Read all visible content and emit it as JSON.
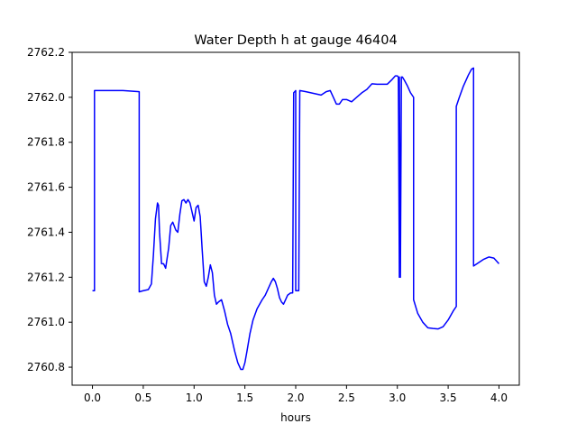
{
  "chart_data": {
    "type": "line",
    "title": "Water Depth h at gauge 46404",
    "xlabel": "hours",
    "ylabel": "",
    "xlim": [
      -0.2,
      4.2
    ],
    "ylim": [
      2760.72,
      2762.2
    ],
    "xticks": [
      0.0,
      0.5,
      1.0,
      1.5,
      2.0,
      2.5,
      3.0,
      3.5,
      4.0
    ],
    "xtick_labels": [
      "0.0",
      "0.5",
      "1.0",
      "1.5",
      "2.0",
      "2.5",
      "3.0",
      "3.5",
      "4.0"
    ],
    "yticks": [
      2760.8,
      2761.0,
      2761.2,
      2761.4,
      2761.6,
      2761.8,
      2762.0,
      2762.2
    ],
    "ytick_labels": [
      "2760.8",
      "2761.0",
      "2761.2",
      "2761.4",
      "2761.6",
      "2761.8",
      "2762.0",
      "2762.2"
    ],
    "grid": false,
    "series": [
      {
        "color": "#0000ff",
        "x": [
          0.0,
          0.02,
          0.02,
          0.1,
          0.3,
          0.46,
          0.46,
          0.5,
          0.55,
          0.58,
          0.6,
          0.62,
          0.64,
          0.65,
          0.66,
          0.68,
          0.7,
          0.72,
          0.75,
          0.77,
          0.79,
          0.82,
          0.84,
          0.86,
          0.88,
          0.9,
          0.92,
          0.94,
          0.96,
          0.98,
          1.0,
          1.02,
          1.04,
          1.06,
          1.08,
          1.1,
          1.12,
          1.14,
          1.16,
          1.18,
          1.2,
          1.22,
          1.24,
          1.27,
          1.3,
          1.33,
          1.36,
          1.4,
          1.43,
          1.46,
          1.48,
          1.5,
          1.52,
          1.55,
          1.58,
          1.62,
          1.67,
          1.7,
          1.73,
          1.76,
          1.78,
          1.8,
          1.82,
          1.84,
          1.86,
          1.88,
          1.9,
          1.92,
          1.95,
          1.97,
          1.98,
          2.0,
          2.0,
          2.02,
          2.03,
          2.04,
          2.1,
          2.15,
          2.2,
          2.25,
          2.3,
          2.34,
          2.37,
          2.4,
          2.43,
          2.46,
          2.5,
          2.55,
          2.6,
          2.65,
          2.7,
          2.75,
          2.8,
          2.85,
          2.9,
          2.95,
          2.98,
          3.0,
          3.01,
          3.02,
          3.02,
          3.03,
          3.04,
          3.05,
          3.07,
          3.1,
          3.13,
          3.16,
          3.16,
          3.2,
          3.25,
          3.3,
          3.35,
          3.4,
          3.45,
          3.5,
          3.55,
          3.58,
          3.58,
          3.61,
          3.65,
          3.7,
          3.73,
          3.75,
          3.75,
          3.8,
          3.85,
          3.9,
          3.95,
          3.98,
          4.0
        ],
        "y": [
          2761.14,
          2761.14,
          2762.03,
          2762.03,
          2762.03,
          2762.025,
          2761.135,
          2761.14,
          2761.145,
          2761.17,
          2761.3,
          2761.46,
          2761.53,
          2761.52,
          2761.4,
          2761.26,
          2761.26,
          2761.24,
          2761.33,
          2761.43,
          2761.445,
          2761.41,
          2761.4,
          2761.48,
          2761.54,
          2761.545,
          2761.53,
          2761.545,
          2761.53,
          2761.49,
          2761.45,
          2761.51,
          2761.52,
          2761.47,
          2761.32,
          2761.18,
          2761.16,
          2761.2,
          2761.255,
          2761.22,
          2761.12,
          2761.08,
          2761.09,
          2761.1,
          2761.05,
          2760.99,
          2760.95,
          2760.87,
          2760.82,
          2760.79,
          2760.79,
          2760.82,
          2760.87,
          2760.95,
          2761.01,
          2761.06,
          2761.1,
          2761.12,
          2761.15,
          2761.18,
          2761.195,
          2761.18,
          2761.15,
          2761.11,
          2761.09,
          2761.08,
          2761.1,
          2761.12,
          2761.13,
          2761.13,
          2762.02,
          2762.03,
          2761.14,
          2761.14,
          2761.14,
          2762.03,
          2762.025,
          2762.02,
          2762.015,
          2762.01,
          2762.025,
          2762.03,
          2762.0,
          2761.97,
          2761.97,
          2761.99,
          2761.99,
          2761.98,
          2762.0,
          2762.02,
          2762.035,
          2762.06,
          2762.058,
          2762.058,
          2762.058,
          2762.08,
          2762.095,
          2762.095,
          2762.09,
          2761.2,
          2762.09,
          2761.2,
          2762.09,
          2762.09,
          2762.075,
          2762.05,
          2762.02,
          2762.0,
          2761.1,
          2761.04,
          2761.0,
          2760.975,
          2760.972,
          2760.97,
          2760.98,
          2761.01,
          2761.05,
          2761.07,
          2761.96,
          2762.0,
          2762.05,
          2762.1,
          2762.125,
          2762.13,
          2761.25,
          2761.265,
          2761.28,
          2761.29,
          2761.285,
          2761.27,
          2761.26
        ]
      }
    ]
  }
}
